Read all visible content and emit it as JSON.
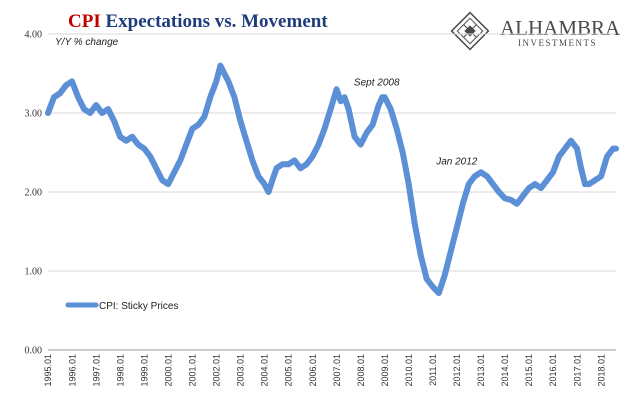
{
  "title": {
    "part1": "CPI",
    "part2": " Expectations vs. Movement"
  },
  "logo": {
    "name": "ALHAMBRA",
    "sub": "INVESTMENTS"
  },
  "colors": {
    "line": "#5b8fd6",
    "title_red": "#c00000",
    "title_blue": "#1f3d7a",
    "grid": "#d9d9d9"
  },
  "chart_data": {
    "type": "line",
    "ylabel": "Y/Y % change",
    "ylim": [
      0,
      4
    ],
    "yticks": [
      "0.00",
      "1.00",
      "2.00",
      "3.00",
      "4.00"
    ],
    "xticks": [
      "1995.01",
      "1996.01",
      "1997.01",
      "1998.01",
      "1999.01",
      "2000.01",
      "2001.01",
      "2002.01",
      "2003.01",
      "2004.01",
      "2005.01",
      "2006.01",
      "2007.01",
      "2008.01",
      "2009.01",
      "2010.01",
      "2011.01",
      "2012.01",
      "2013.01",
      "2014.01",
      "2015.01",
      "2016.01",
      "2017.01",
      "2018.01"
    ],
    "xrange": [
      1995.0,
      2018.62
    ],
    "grid": "horizontal",
    "legend_position": "bottom-left",
    "annotations": [
      {
        "text": "Sept 2008",
        "x": 2008.67,
        "y": 3.35
      },
      {
        "text": "Jan 2012",
        "x": 2012.0,
        "y": 2.35
      }
    ],
    "series": [
      {
        "name": "CPI: Sticky Prices",
        "points": [
          [
            1995.0,
            3.0
          ],
          [
            1995.25,
            3.2
          ],
          [
            1995.5,
            3.25
          ],
          [
            1995.75,
            3.35
          ],
          [
            1996.0,
            3.4
          ],
          [
            1996.25,
            3.2
          ],
          [
            1996.5,
            3.05
          ],
          [
            1996.75,
            3.0
          ],
          [
            1997.0,
            3.1
          ],
          [
            1997.25,
            3.0
          ],
          [
            1997.5,
            3.05
          ],
          [
            1997.75,
            2.9
          ],
          [
            1998.0,
            2.7
          ],
          [
            1998.25,
            2.65
          ],
          [
            1998.5,
            2.7
          ],
          [
            1998.75,
            2.6
          ],
          [
            1999.0,
            2.55
          ],
          [
            1999.25,
            2.45
          ],
          [
            1999.5,
            2.3
          ],
          [
            1999.75,
            2.15
          ],
          [
            2000.0,
            2.1
          ],
          [
            2000.25,
            2.25
          ],
          [
            2000.5,
            2.4
          ],
          [
            2000.75,
            2.6
          ],
          [
            2001.0,
            2.8
          ],
          [
            2001.25,
            2.85
          ],
          [
            2001.5,
            2.95
          ],
          [
            2001.75,
            3.2
          ],
          [
            2002.0,
            3.4
          ],
          [
            2002.17,
            3.6
          ],
          [
            2002.33,
            3.5
          ],
          [
            2002.5,
            3.4
          ],
          [
            2002.75,
            3.2
          ],
          [
            2003.0,
            2.9
          ],
          [
            2003.25,
            2.65
          ],
          [
            2003.5,
            2.4
          ],
          [
            2003.75,
            2.2
          ],
          [
            2004.0,
            2.1
          ],
          [
            2004.17,
            2.0
          ],
          [
            2004.33,
            2.15
          ],
          [
            2004.5,
            2.3
          ],
          [
            2004.75,
            2.35
          ],
          [
            2005.0,
            2.35
          ],
          [
            2005.25,
            2.4
          ],
          [
            2005.5,
            2.3
          ],
          [
            2005.75,
            2.35
          ],
          [
            2006.0,
            2.45
          ],
          [
            2006.25,
            2.6
          ],
          [
            2006.5,
            2.8
          ],
          [
            2006.75,
            3.05
          ],
          [
            2007.0,
            3.3
          ],
          [
            2007.17,
            3.15
          ],
          [
            2007.33,
            3.2
          ],
          [
            2007.5,
            3.05
          ],
          [
            2007.75,
            2.7
          ],
          [
            2008.0,
            2.6
          ],
          [
            2008.25,
            2.75
          ],
          [
            2008.5,
            2.85
          ],
          [
            2008.75,
            3.1
          ],
          [
            2008.9,
            3.2
          ],
          [
            2009.0,
            3.2
          ],
          [
            2009.25,
            3.05
          ],
          [
            2009.5,
            2.8
          ],
          [
            2009.75,
            2.5
          ],
          [
            2010.0,
            2.1
          ],
          [
            2010.25,
            1.6
          ],
          [
            2010.5,
            1.2
          ],
          [
            2010.75,
            0.9
          ],
          [
            2011.0,
            0.8
          ],
          [
            2011.25,
            0.72
          ],
          [
            2011.5,
            0.95
          ],
          [
            2011.75,
            1.25
          ],
          [
            2012.0,
            1.55
          ],
          [
            2012.25,
            1.85
          ],
          [
            2012.5,
            2.1
          ],
          [
            2012.75,
            2.2
          ],
          [
            2013.0,
            2.25
          ],
          [
            2013.25,
            2.2
          ],
          [
            2013.5,
            2.1
          ],
          [
            2013.75,
            2.0
          ],
          [
            2014.0,
            1.92
          ],
          [
            2014.25,
            1.9
          ],
          [
            2014.5,
            1.85
          ],
          [
            2014.75,
            1.95
          ],
          [
            2015.0,
            2.05
          ],
          [
            2015.25,
            2.1
          ],
          [
            2015.5,
            2.05
          ],
          [
            2015.75,
            2.15
          ],
          [
            2016.0,
            2.25
          ],
          [
            2016.25,
            2.45
          ],
          [
            2016.5,
            2.55
          ],
          [
            2016.75,
            2.65
          ],
          [
            2017.0,
            2.55
          ],
          [
            2017.17,
            2.3
          ],
          [
            2017.33,
            2.1
          ],
          [
            2017.5,
            2.1
          ],
          [
            2017.75,
            2.15
          ],
          [
            2018.0,
            2.2
          ],
          [
            2018.25,
            2.45
          ],
          [
            2018.5,
            2.55
          ],
          [
            2018.62,
            2.55
          ]
        ]
      }
    ]
  }
}
